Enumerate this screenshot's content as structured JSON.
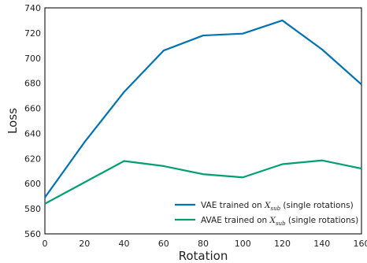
{
  "chart_data": {
    "type": "line",
    "xlabel": "Rotation",
    "ylabel": "Loss",
    "xlim": [
      0,
      160
    ],
    "ylim": [
      560,
      740
    ],
    "xticks": [
      0,
      20,
      40,
      60,
      80,
      100,
      120,
      140,
      160
    ],
    "yticks": [
      560,
      580,
      600,
      620,
      640,
      660,
      680,
      700,
      720,
      740
    ],
    "grid": false,
    "legend_position": "bottom-right",
    "x": [
      0,
      20,
      40,
      60,
      80,
      100,
      120,
      140,
      160
    ],
    "series": [
      {
        "name": "VAE trained on X_sub (single rotations)",
        "legend_parts": {
          "prefix": "VAE trained on ",
          "var": "X",
          "sub": "sub",
          "suffix": " (single rotations)"
        },
        "color": "#0072b2",
        "values": [
          589,
          633,
          673,
          706,
          718,
          719.5,
          730,
          707,
          679
        ]
      },
      {
        "name": "AVAE trained on X_sub (single rotations)",
        "legend_parts": {
          "prefix": "AVAE trained on ",
          "var": "X",
          "sub": "sub",
          "suffix": " (single rotations)"
        },
        "color": "#009e73",
        "values": [
          584,
          601,
          618,
          614,
          607.5,
          605,
          615.5,
          618.5,
          612
        ]
      }
    ]
  }
}
